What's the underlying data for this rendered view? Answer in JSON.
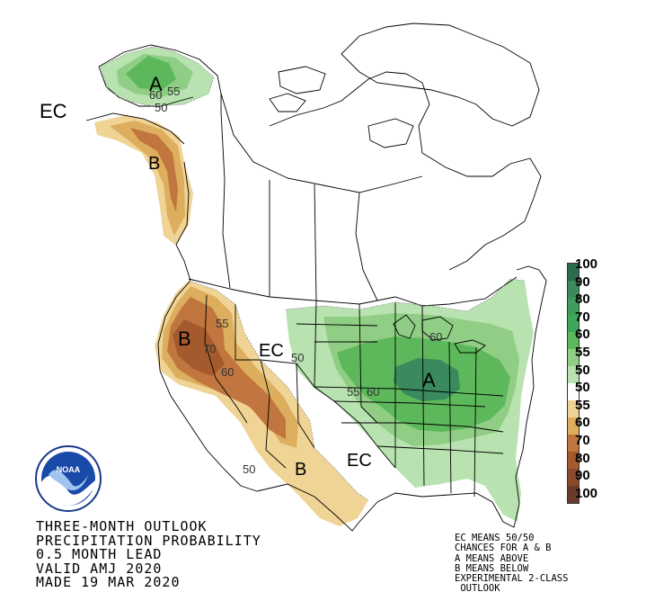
{
  "title_lines": [
    "THREE-MONTH OUTLOOK",
    "PRECIPITATION PROBABILITY",
    "0.5 MONTH LEAD",
    "VALID AMJ 2020",
    "MADE 19 MAR 2020"
  ],
  "notes": [
    "EC MEANS 50/50",
    "CHANCES FOR A & B",
    "A MEANS ABOVE",
    "B MEANS BELOW",
    "EXPERIMENTAL 2-CLASS",
    " OUTLOOK"
  ],
  "legend": [
    {
      "label": "100",
      "color": "#2e6a4e"
    },
    {
      "label": "90",
      "color": "#3a8a5e"
    },
    {
      "label": "80",
      "color": "#3f9c5c"
    },
    {
      "label": "70",
      "color": "#3da85a"
    },
    {
      "label": "60",
      "color": "#5cb85a"
    },
    {
      "label": "55",
      "color": "#8fce84"
    },
    {
      "label": "50",
      "color": "#b8e2b0"
    },
    {
      "label": "50",
      "color": "#ffffff"
    },
    {
      "label": "55",
      "color": "#f0d496"
    },
    {
      "label": "60",
      "color": "#dcae5e"
    },
    {
      "label": "70",
      "color": "#c0763e"
    },
    {
      "label": "80",
      "color": "#a55a2e"
    },
    {
      "label": "90",
      "color": "#8a4a2a"
    },
    {
      "label": "100",
      "color": "#6a3a2a"
    }
  ],
  "map_labels": {
    "ec_alaska": "EC",
    "a_alaska": "A",
    "b_panhandle": "B",
    "b_west": "B",
    "ec_plains": "EC",
    "a_ohio": "A",
    "b_southwest": "B",
    "ec_texas": "EC",
    "c60_ak": "60",
    "c55_ak": "55",
    "c50_ak": "50",
    "c55_nv": "55",
    "c70_nv": "70",
    "c60_ut": "60",
    "c50_ne": "50",
    "c55_mo": "55",
    "c60_mo": "60",
    "c60_mi": "60",
    "c50_nm": "50"
  },
  "logo_text": "NOAA"
}
